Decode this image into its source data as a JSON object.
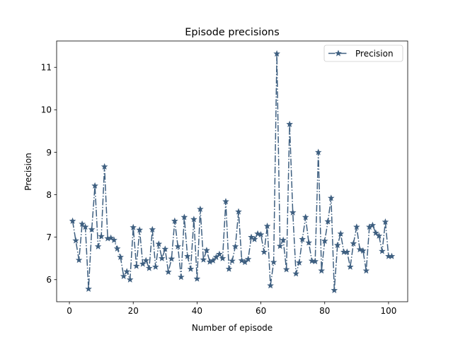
{
  "chart_data": {
    "type": "line",
    "title": "Episode precisions",
    "xlabel": "Number of episode",
    "ylabel": "Precision",
    "xlim": [
      -4,
      106
    ],
    "ylim": [
      5.48,
      11.62
    ],
    "xticks": [
      0,
      20,
      40,
      60,
      80,
      100
    ],
    "yticks": [
      6,
      7,
      8,
      9,
      10,
      11
    ],
    "grid": false,
    "legend_position": "top-right",
    "series": [
      {
        "name": "Precision",
        "color": "#3e5f80",
        "line_style": "dash-dot",
        "marker": "star",
        "x": [
          1,
          2,
          3,
          4,
          5,
          6,
          7,
          8,
          9,
          10,
          11,
          12,
          13,
          14,
          15,
          16,
          17,
          18,
          19,
          20,
          21,
          22,
          23,
          24,
          25,
          26,
          27,
          28,
          29,
          30,
          31,
          32,
          33,
          34,
          35,
          36,
          37,
          38,
          39,
          40,
          41,
          42,
          43,
          44,
          45,
          46,
          47,
          48,
          49,
          50,
          51,
          52,
          53,
          54,
          55,
          56,
          57,
          58,
          59,
          60,
          61,
          62,
          63,
          64,
          65,
          66,
          67,
          68,
          69,
          70,
          71,
          72,
          73,
          74,
          75,
          76,
          77,
          78,
          79,
          80,
          81,
          82,
          83,
          84,
          85,
          86,
          87,
          88,
          89,
          90,
          91,
          92,
          93,
          94,
          95,
          96,
          97,
          98,
          99,
          100,
          101
        ],
        "y": [
          7.38,
          6.92,
          6.46,
          7.31,
          7.24,
          5.78,
          7.18,
          8.21,
          6.78,
          7.02,
          8.66,
          6.97,
          6.98,
          6.93,
          6.73,
          6.53,
          6.08,
          6.19,
          6.0,
          7.23,
          6.32,
          7.17,
          6.37,
          6.45,
          6.27,
          7.18,
          6.3,
          6.84,
          6.5,
          6.72,
          6.18,
          6.49,
          7.38,
          6.78,
          6.06,
          7.47,
          6.55,
          6.25,
          7.42,
          6.02,
          7.66,
          6.47,
          6.69,
          6.42,
          6.45,
          6.53,
          6.6,
          6.5,
          7.84,
          6.25,
          6.44,
          6.78,
          7.6,
          6.45,
          6.41,
          6.48,
          7.0,
          6.95,
          7.08,
          7.06,
          6.65,
          7.26,
          5.86,
          6.41,
          11.32,
          6.79,
          6.93,
          6.24,
          9.66,
          7.58,
          6.14,
          6.4,
          6.95,
          7.47,
          6.87,
          6.44,
          6.43,
          9.0,
          6.21,
          6.91,
          7.37,
          7.92,
          5.75,
          6.81,
          7.08,
          6.65,
          6.65,
          6.3,
          6.85,
          7.24,
          6.71,
          6.68,
          6.21,
          7.24,
          7.28,
          7.1,
          7.03,
          6.67,
          7.36,
          6.55,
          6.55
        ]
      }
    ]
  }
}
